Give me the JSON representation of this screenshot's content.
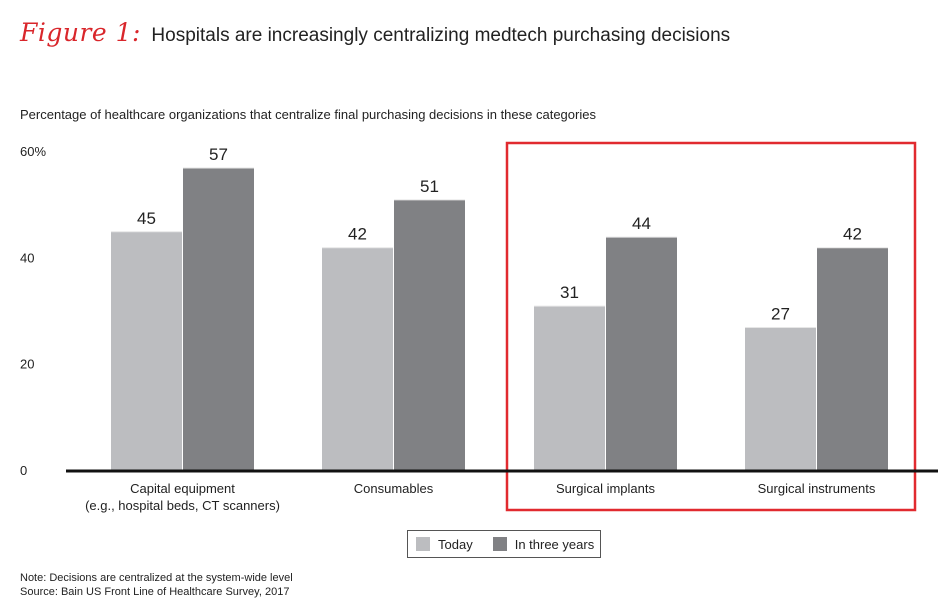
{
  "header": {
    "figure_label": "Figure 1:",
    "title": "Hospitals are increasingly centralizing medtech purchasing decisions"
  },
  "chart_data": {
    "type": "bar",
    "title": "Percentage of healthcare organizations that centralize final purchasing decisions in these categories",
    "categories": [
      [
        "Capital equipment",
        "(e.g., hospital beds, CT scanners)"
      ],
      [
        "Consumables"
      ],
      [
        "Surgical implants"
      ],
      [
        "Surgical instruments"
      ]
    ],
    "series": [
      {
        "name": "Today",
        "values": [
          45,
          42,
          31,
          27
        ],
        "color": "#bcbdc0"
      },
      {
        "name": "In three years",
        "values": [
          57,
          51,
          44,
          42
        ],
        "color": "#808184"
      }
    ],
    "y_ticks": [
      "0",
      "20",
      "40",
      "60%"
    ],
    "ylim": [
      0,
      60
    ],
    "grid": false,
    "legend_position": "bottom-center",
    "highlight_categories": [
      2,
      3
    ],
    "highlight_color": "#e12a2f"
  },
  "footer": {
    "note": "Note: Decisions are centralized at the system-wide level",
    "source": "Source: Bain US Front Line of Healthcare Survey, 2017"
  }
}
